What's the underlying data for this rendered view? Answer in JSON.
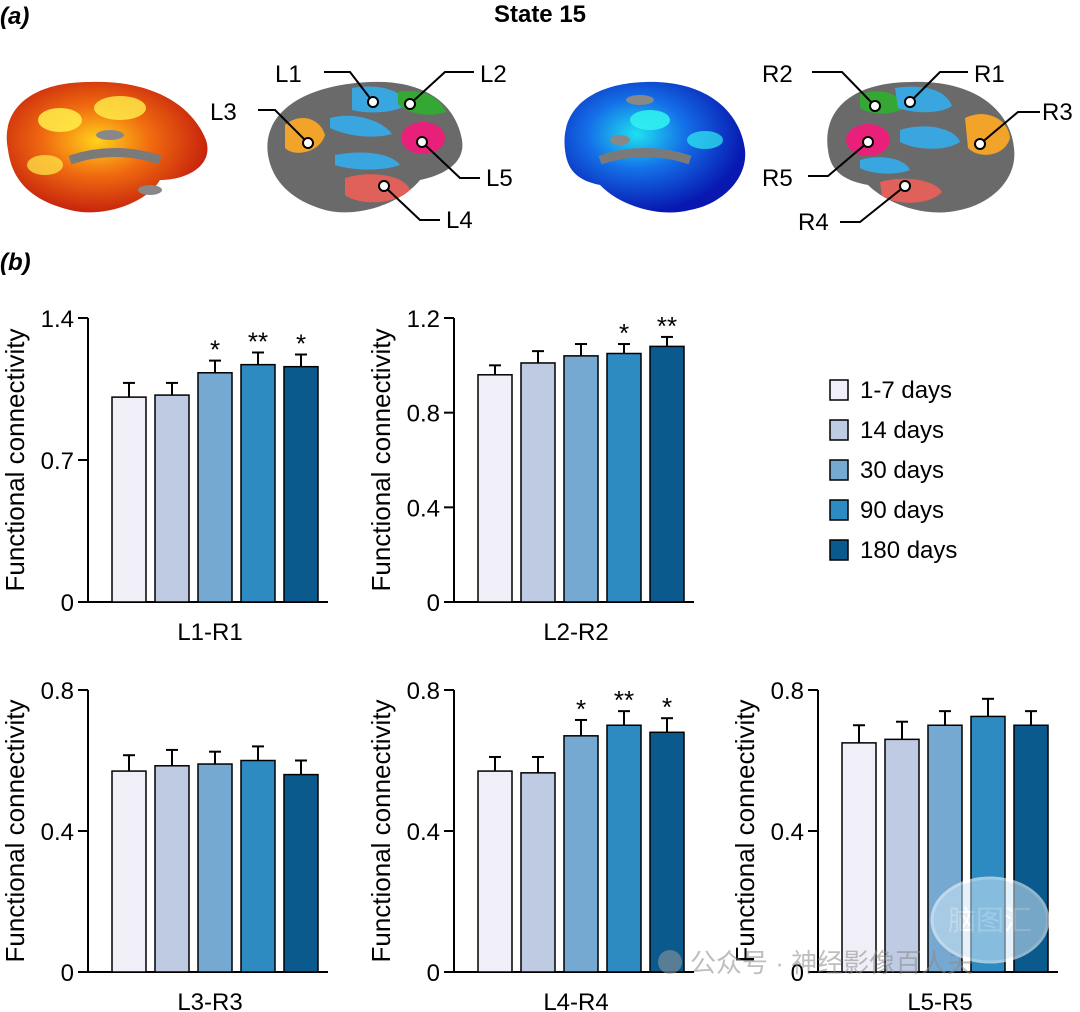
{
  "panel_a": {
    "label": "(a)",
    "title": "State 15",
    "left_labels": [
      "L1",
      "L2",
      "L3",
      "L4",
      "L5"
    ],
    "right_labels": [
      "R1",
      "R2",
      "R3",
      "R4",
      "R5"
    ],
    "region_colors": {
      "L1": "#3aa6e0",
      "L2": "#34a832",
      "L3": "#f2a32a",
      "L4": "#e0605a",
      "L5": "#e8207a"
    }
  },
  "panel_b": {
    "label": "(b)"
  },
  "legend": {
    "entries": [
      "1-7 days",
      "14 days",
      "30 days",
      "90 days",
      "180 days"
    ],
    "colors": [
      "#f0eff7",
      "#bfcbe2",
      "#76a9d1",
      "#2e8bc1",
      "#0a5a8e"
    ]
  },
  "chart_data": [
    {
      "type": "bar",
      "xlabel": "L1-R1",
      "ylabel": "Functional connectivity",
      "ylim": [
        0,
        1.4
      ],
      "yticks": [
        "0",
        "0.7",
        "1.4"
      ],
      "categories": [
        "1-7 days",
        "14 days",
        "30 days",
        "90 days",
        "180 days"
      ],
      "values": [
        1.01,
        1.02,
        1.13,
        1.17,
        1.16
      ],
      "errors": [
        0.07,
        0.06,
        0.06,
        0.06,
        0.06
      ],
      "significance": [
        "",
        "",
        "*",
        "**",
        "*"
      ]
    },
    {
      "type": "bar",
      "xlabel": "L2-R2",
      "ylabel": "Functional connectivity",
      "ylim": [
        0,
        1.2
      ],
      "yticks": [
        "0",
        "0.4",
        "0.8",
        "1.2"
      ],
      "categories": [
        "1-7 days",
        "14 days",
        "30 days",
        "90 days",
        "180 days"
      ],
      "values": [
        0.96,
        1.01,
        1.04,
        1.05,
        1.08
      ],
      "errors": [
        0.04,
        0.05,
        0.05,
        0.04,
        0.04
      ],
      "significance": [
        "",
        "",
        "",
        "*",
        "**"
      ]
    },
    {
      "type": "bar",
      "xlabel": "L3-R3",
      "ylabel": "Functional connectivity",
      "ylim": [
        0,
        0.8
      ],
      "yticks": [
        "0",
        "0.4",
        "0.8"
      ],
      "categories": [
        "1-7 days",
        "14 days",
        "30 days",
        "90 days",
        "180 days"
      ],
      "values": [
        0.57,
        0.585,
        0.59,
        0.6,
        0.56
      ],
      "errors": [
        0.045,
        0.045,
        0.035,
        0.04,
        0.04
      ],
      "significance": [
        "",
        "",
        "",
        "",
        ""
      ]
    },
    {
      "type": "bar",
      "xlabel": "L4-R4",
      "ylabel": "Functional connectivity",
      "ylim": [
        0,
        0.8
      ],
      "yticks": [
        "0",
        "0.4",
        "0.8"
      ],
      "categories": [
        "1-7 days",
        "14 days",
        "30 days",
        "90 days",
        "180 days"
      ],
      "values": [
        0.57,
        0.565,
        0.67,
        0.7,
        0.68
      ],
      "errors": [
        0.04,
        0.045,
        0.045,
        0.04,
        0.04
      ],
      "significance": [
        "",
        "",
        "*",
        "**",
        "*"
      ]
    },
    {
      "type": "bar",
      "xlabel": "L5-R5",
      "ylabel": "Functional connectivity",
      "ylim": [
        0,
        0.8
      ],
      "yticks": [
        "0",
        "0.4",
        "0.8"
      ],
      "categories": [
        "1-7 days",
        "14 days",
        "30 days",
        "90 days",
        "180 days"
      ],
      "values": [
        0.65,
        0.66,
        0.7,
        0.725,
        0.7
      ],
      "errors": [
        0.05,
        0.05,
        0.04,
        0.05,
        0.04
      ],
      "significance": [
        "",
        "",
        "",
        "",
        ""
      ]
    }
  ],
  "watermark": {
    "text": "公众号 · 神经影像百人夫",
    "logo_text": "脑图汇"
  }
}
